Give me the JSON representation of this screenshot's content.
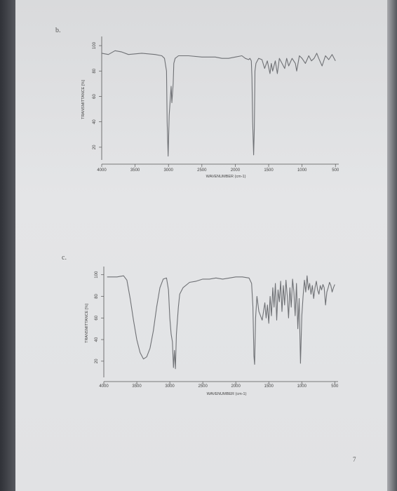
{
  "page": {
    "label_b": "b.",
    "label_c": "c.",
    "page_number": "7"
  },
  "chart_data": [
    {
      "type": "line",
      "panel": "b",
      "xlabel": "WAVENUMBER (cm-1)",
      "ylabel": "TRANSMITTANCE [%]",
      "x_ticks": [
        "4000",
        "3500",
        "3000",
        "2500",
        "2000",
        "1500",
        "1000",
        "500"
      ],
      "y_ticks": [
        "100",
        "80",
        "60",
        "40",
        "20"
      ],
      "xlim": [
        4000,
        450
      ],
      "ylim": [
        10,
        105
      ],
      "series": [
        {
          "x": [
            4000,
            3900,
            3800,
            3700,
            3600,
            3400,
            3200,
            3100,
            3060,
            3030,
            3020,
            3005,
            2990,
            2960,
            2950,
            2930,
            2920,
            2900,
            2850,
            2700,
            2500,
            2300,
            2200,
            2100,
            2000,
            1900,
            1850,
            1800,
            1780,
            1760,
            1750,
            1740,
            1725,
            1715,
            1705,
            1690,
            1650,
            1600,
            1560,
            1520,
            1480,
            1460,
            1440,
            1400,
            1370,
            1340,
            1300,
            1260,
            1230,
            1200,
            1150,
            1100,
            1080,
            1040,
            1000,
            950,
            900,
            860,
            820,
            780,
            750,
            700,
            650,
            600,
            550,
            500
          ],
          "y": [
            94,
            93,
            96,
            95,
            93,
            94,
            93,
            92,
            90,
            80,
            40,
            13,
            45,
            68,
            55,
            70,
            86,
            90,
            92,
            92,
            91,
            91,
            90,
            90,
            91,
            92,
            90,
            89,
            90,
            88,
            75,
            40,
            14,
            35,
            80,
            86,
            90,
            89,
            82,
            88,
            78,
            86,
            80,
            88,
            78,
            90,
            86,
            82,
            90,
            84,
            90,
            86,
            80,
            92,
            90,
            86,
            92,
            88,
            90,
            94,
            90,
            84,
            92,
            89,
            93,
            88
          ]
        }
      ]
    },
    {
      "type": "line",
      "panel": "c",
      "xlabel": "WAVENUMBER (cm-1)",
      "ylabel": "TRANSMITTANCE [%]",
      "x_ticks": [
        "4000",
        "3500",
        "3000",
        "2500",
        "2000",
        "1500",
        "1000",
        "500"
      ],
      "y_ticks": [
        "100",
        "80",
        "60",
        "40",
        "20"
      ],
      "xlim": [
        4000,
        450
      ],
      "ylim": [
        5,
        105
      ],
      "series": [
        {
          "x": [
            3950,
            3800,
            3700,
            3650,
            3600,
            3550,
            3500,
            3450,
            3400,
            3350,
            3300,
            3250,
            3200,
            3150,
            3100,
            3050,
            3020,
            3000,
            2980,
            2960,
            2945,
            2930,
            2915,
            2900,
            2870,
            2850,
            2800,
            2700,
            2600,
            2500,
            2400,
            2300,
            2200,
            2000,
            1900,
            1800,
            1760,
            1740,
            1725,
            1715,
            1700,
            1680,
            1650,
            1600,
            1560,
            1540,
            1520,
            1500,
            1480,
            1460,
            1440,
            1420,
            1400,
            1380,
            1360,
            1340,
            1320,
            1300,
            1280,
            1260,
            1240,
            1220,
            1200,
            1180,
            1160,
            1140,
            1120,
            1100,
            1080,
            1060,
            1040,
            1020,
            1000,
            980,
            960,
            940,
            920,
            900,
            880,
            860,
            840,
            820,
            800,
            780,
            760,
            740,
            720,
            700,
            680,
            660,
            640,
            620,
            600,
            580,
            560,
            540,
            520,
            500
          ],
          "y": [
            98,
            98,
            99,
            95,
            78,
            58,
            40,
            28,
            22,
            24,
            32,
            48,
            70,
            88,
            96,
            97,
            86,
            60,
            45,
            38,
            14,
            30,
            13,
            45,
            70,
            82,
            88,
            93,
            94,
            96,
            96,
            97,
            96,
            98,
            98,
            97,
            92,
            70,
            25,
            17,
            60,
            80,
            66,
            58,
            74,
            60,
            72,
            55,
            80,
            62,
            88,
            70,
            92,
            58,
            86,
            75,
            94,
            66,
            90,
            72,
            95,
            80,
            60,
            88,
            70,
            96,
            84,
            62,
            92,
            50,
            78,
            18,
            62,
            80,
            95,
            84,
            99,
            86,
            92,
            82,
            90,
            78,
            88,
            94,
            86,
            82,
            90,
            86,
            91,
            88,
            72,
            84,
            88,
            93,
            90,
            84,
            88,
            91
          ]
        }
      ]
    }
  ]
}
